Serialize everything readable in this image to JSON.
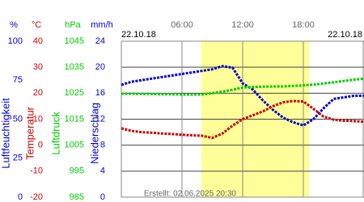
{
  "chart_data": {
    "type": "line",
    "date_left": "22.10.18",
    "date_right": "22.10.18",
    "footer": "Erstellt: 02.06.2025 20:30",
    "xlim": [
      0,
      24
    ],
    "xticks": [
      {
        "value": 6,
        "label": "06:00"
      },
      {
        "value": 12,
        "label": "12:00"
      },
      {
        "value": 18,
        "label": "18:00"
      }
    ],
    "daylight": [
      7.9,
      18.6
    ],
    "daylight_color": "#ffff99",
    "grid": true,
    "axes": [
      {
        "unit": "%",
        "title": "Luftfeuchtigkeit",
        "color": "#0000cc",
        "ylim": [
          0,
          100
        ],
        "yticks": [
          0,
          25,
          50,
          75,
          100
        ]
      },
      {
        "unit": "°C",
        "title": "Temperatur",
        "color": "#cc0000",
        "ylim": [
          -20,
          40
        ],
        "yticks": [
          -20,
          -10,
          0,
          10,
          20,
          30,
          40
        ]
      },
      {
        "unit": "hPa",
        "title": "Luftdruck",
        "color": "#00cc00",
        "ylim": [
          985,
          1045
        ],
        "yticks": [
          985,
          995,
          1005,
          1015,
          1025,
          1035,
          1045
        ]
      },
      {
        "unit": "mm/h",
        "title": "Niederschlag",
        "color": "#0000cc",
        "ylim": [
          0,
          24
        ],
        "yticks": [
          0,
          4,
          8,
          12,
          16,
          20,
          24
        ]
      }
    ],
    "x": [
      0,
      1,
      2,
      3,
      4,
      5,
      6,
      7,
      8,
      9,
      10,
      11,
      12,
      13,
      14,
      15,
      16,
      17,
      18,
      19,
      20,
      21,
      22,
      23,
      24
    ],
    "series": [
      {
        "color": "#0000cc",
        "axis": 0,
        "values": [
          72,
          74,
          75,
          76,
          77,
          78,
          79,
          80,
          81,
          82,
          84,
          83,
          73,
          69,
          62,
          56,
          51,
          48,
          46,
          50,
          57,
          63,
          64,
          65,
          65
        ]
      },
      {
        "color": "#cc0000",
        "axis": 1,
        "values": [
          6.5,
          5.5,
          5,
          4.8,
          4.5,
          4.3,
          4,
          3.8,
          3.6,
          2.8,
          4.5,
          7.5,
          10,
          11.5,
          13,
          15,
          16.5,
          17,
          16.8,
          14,
          11,
          9.8,
          9.4,
          9.3,
          9
        ]
      },
      {
        "color": "#00cc00",
        "axis": 2,
        "values": [
          1024.8,
          1024.8,
          1024.7,
          1024.7,
          1024.6,
          1024.6,
          1024.5,
          1024.5,
          1024.5,
          1025,
          1025.6,
          1026.3,
          1027.2,
          1027.4,
          1027.5,
          1027.6,
          1027.6,
          1027.8,
          1028,
          1028.3,
          1028.7,
          1029.2,
          1029.7,
          1030.2,
          1030.6
        ]
      }
    ]
  }
}
